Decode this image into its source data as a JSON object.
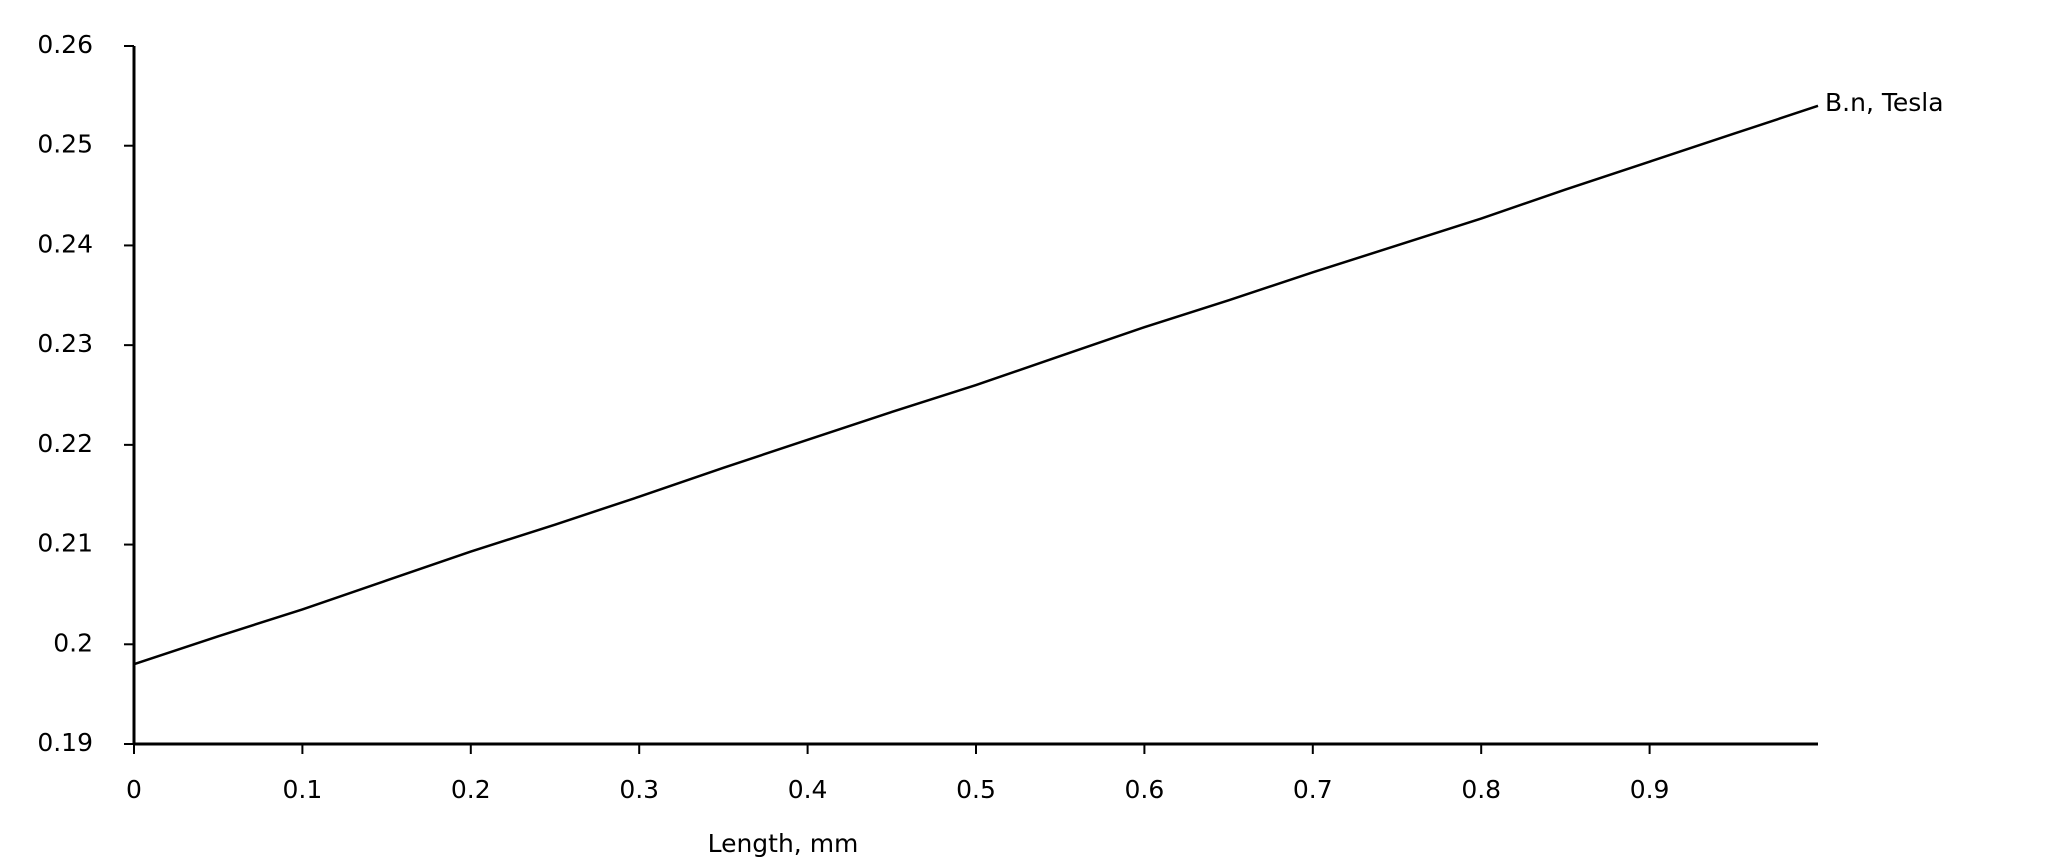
{
  "chart_data": {
    "type": "line",
    "x_label": "Length, mm",
    "x": [
      0,
      0.05,
      0.1,
      0.15,
      0.2,
      0.25,
      0.3,
      0.35,
      0.4,
      0.45,
      0.5,
      0.55,
      0.6,
      0.65,
      0.7,
      0.75,
      0.8,
      0.85,
      0.9,
      0.95,
      1.0
    ],
    "series": [
      {
        "name": "B.n, Tesla",
        "color": "#000000",
        "values": [
          0.198,
          0.2008,
          0.2035,
          0.2064,
          0.2093,
          0.212,
          0.2148,
          0.2177,
          0.2205,
          0.2233,
          0.226,
          0.2289,
          0.2318,
          0.2345,
          0.2373,
          0.24,
          0.2427,
          0.2456,
          0.2484,
          0.2512,
          0.254
        ]
      }
    ],
    "xlim": [
      0,
      1
    ],
    "xticks": [
      0,
      0.1,
      0.2,
      0.3,
      0.4,
      0.5,
      0.6,
      0.7,
      0.8,
      0.9
    ],
    "ylim": [
      0.19,
      0.26
    ],
    "yticks": [
      0.19,
      0.2,
      0.21,
      0.22,
      0.23,
      0.24,
      0.25,
      0.26
    ],
    "grid": false
  }
}
